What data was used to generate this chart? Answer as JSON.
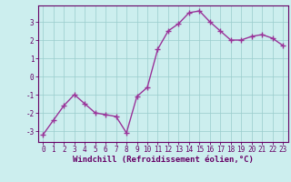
{
  "x": [
    0,
    1,
    2,
    3,
    4,
    5,
    6,
    7,
    8,
    9,
    10,
    11,
    12,
    13,
    14,
    15,
    16,
    17,
    18,
    19,
    20,
    21,
    22,
    23
  ],
  "y": [
    -3.2,
    -2.4,
    -1.6,
    -1.0,
    -1.5,
    -2.0,
    -2.1,
    -2.2,
    -3.1,
    -1.1,
    -0.6,
    1.5,
    2.5,
    2.9,
    3.5,
    3.6,
    3.0,
    2.5,
    2.0,
    2.0,
    2.2,
    2.3,
    2.1,
    1.7
  ],
  "line_color": "#993399",
  "marker": "+",
  "marker_size": 4,
  "linewidth": 1.0,
  "xlabel": "Windchill (Refroidissement éolien,°C)",
  "xlabel_fontsize": 6.5,
  "xlabel_color": "#660066",
  "xlim": [
    -0.5,
    23.5
  ],
  "ylim": [
    -3.6,
    3.9
  ],
  "yticks": [
    -3,
    -2,
    -1,
    0,
    1,
    2,
    3
  ],
  "xticks": [
    0,
    1,
    2,
    3,
    4,
    5,
    6,
    7,
    8,
    9,
    10,
    11,
    12,
    13,
    14,
    15,
    16,
    17,
    18,
    19,
    20,
    21,
    22,
    23
  ],
  "grid_color": "#99cccc",
  "background_color": "#cceeee",
  "tick_color": "#660066",
  "tick_fontsize": 5.5,
  "spine_color": "#660066"
}
